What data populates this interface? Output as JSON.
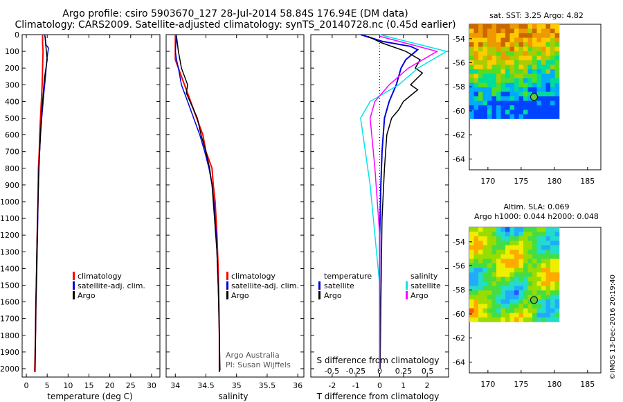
{
  "title_line1": "Argo profile: csiro 5903670_127 28-Jul-2014 58.84S 176.94E (DM data)",
  "title_line2": "Climatology: CARS2009. Satellite-adjusted climatology: synTS_20140728.nc (0.45d earlier)",
  "colors": {
    "climatology": "#ff0000",
    "satellite": "#0000dd",
    "argo": "#000000",
    "s_satellite": "#00e5ee",
    "s_argo": "#ff00ff"
  },
  "chart_data": [
    {
      "type": "line",
      "xlabel": "temperature (deg C)",
      "ylim": [
        2050,
        0
      ],
      "yticks": [
        0,
        100,
        200,
        300,
        400,
        500,
        600,
        700,
        800,
        900,
        1000,
        1100,
        1200,
        1300,
        1400,
        1500,
        1600,
        1700,
        1800,
        1900,
        2000
      ],
      "xlim": [
        -1,
        32
      ],
      "xticks": [
        0,
        5,
        10,
        15,
        20,
        25,
        30
      ],
      "legend": [
        "climatology",
        "satellite-adj. clim.",
        "Argo"
      ],
      "series": [
        {
          "name": "climatology",
          "x": [
            3.9,
            3.9,
            4.0,
            3.9,
            3.8,
            3.6,
            3.4,
            3.2,
            3.1,
            2.9,
            2.8,
            2.6,
            2.5,
            2.3,
            2.2,
            2.0
          ],
          "y": [
            0,
            50,
            100,
            200,
            300,
            400,
            500,
            600,
            700,
            800,
            1000,
            1200,
            1400,
            1600,
            1800,
            2020
          ]
        },
        {
          "name": "satellite-adj. clim.",
          "x": [
            4.4,
            4.7,
            5.3,
            4.9,
            4.6,
            4.2,
            3.7,
            3.4,
            3.2,
            3.0,
            2.8,
            2.7,
            2.5,
            2.3,
            2.2,
            2.1
          ],
          "y": [
            0,
            60,
            80,
            150,
            250,
            350,
            500,
            600,
            700,
            800,
            1000,
            1200,
            1400,
            1600,
            1800,
            2020
          ]
        },
        {
          "name": "Argo",
          "x": [
            4.5,
            4.6,
            4.8,
            5.0,
            4.7,
            4.4,
            4.2,
            3.9,
            3.6,
            3.4,
            3.1,
            2.9,
            2.7,
            2.5,
            2.3,
            2.2,
            2.1
          ],
          "y": [
            10,
            50,
            100,
            150,
            200,
            250,
            300,
            400,
            500,
            600,
            750,
            900,
            1100,
            1300,
            1600,
            1800,
            2010
          ]
        }
      ]
    },
    {
      "type": "line",
      "xlabel": "salinity",
      "ylim": [
        2050,
        0
      ],
      "xlim": [
        33.85,
        36.1
      ],
      "xticks": [
        34,
        34.5,
        35,
        35.5,
        36
      ],
      "xticklabels": [
        "34",
        "34.5",
        "35",
        "35.5",
        "36"
      ],
      "legend": [
        "climatology",
        "satellite-adj. clim.",
        "Argo"
      ],
      "annotations": [
        "Argo Australia",
        "PI: Susan Wijffels"
      ],
      "series": [
        {
          "name": "climatology",
          "x": [
            34.0,
            34.0,
            34.0,
            34.05,
            34.15,
            34.25,
            34.35,
            34.45,
            34.5,
            34.6,
            34.62,
            34.65,
            34.68,
            34.7,
            34.71,
            34.72,
            34.72
          ],
          "y": [
            0,
            100,
            150,
            200,
            300,
            400,
            500,
            600,
            700,
            800,
            900,
            1000,
            1200,
            1400,
            1600,
            1800,
            2020
          ]
        },
        {
          "name": "satellite-adj. clim.",
          "x": [
            34.02,
            34.0,
            34.02,
            34.05,
            34.1,
            34.2,
            34.3,
            34.4,
            34.48,
            34.55,
            34.6,
            34.63,
            34.67,
            34.69,
            34.71,
            34.72,
            34.72
          ],
          "y": [
            0,
            100,
            150,
            200,
            300,
            400,
            500,
            600,
            700,
            800,
            900,
            1000,
            1200,
            1400,
            1600,
            1800,
            2020
          ]
        },
        {
          "name": "Argo",
          "x": [
            34.02,
            34.05,
            34.1,
            34.2,
            34.18,
            34.24,
            34.3,
            34.36,
            34.42,
            34.5,
            34.56,
            34.6,
            34.64,
            34.68,
            34.7,
            34.72,
            34.73
          ],
          "y": [
            10,
            100,
            200,
            300,
            350,
            400,
            450,
            500,
            600,
            700,
            800,
            900,
            1100,
            1300,
            1500,
            1800,
            2010
          ]
        }
      ]
    },
    {
      "type": "line",
      "xlabel": "T difference from climatology",
      "xlabel_top": "S difference from climatology",
      "ylim": [
        2050,
        0
      ],
      "xlim": [
        -2.9,
        2.9
      ],
      "xticks": [
        -2,
        -1,
        0,
        1,
        2
      ],
      "xticks_top": [
        -0.5,
        -0.25,
        0,
        0.25,
        0.5
      ],
      "xticklabels_top": [
        "-0.5",
        "-0.25",
        "0",
        "0.25",
        "0.5"
      ],
      "legend_left_title": "temperature",
      "legend_right_title": "salinity",
      "legend_left": [
        "satellite",
        "Argo"
      ],
      "legend_right": [
        "satellite",
        "Argo"
      ],
      "series": [
        {
          "name": "temperature satellite",
          "x": [
            -0.8,
            0.1,
            1.3,
            1.6,
            1.1,
            0.9,
            0.7,
            0.4,
            0.2,
            0.1,
            0.05,
            0.0,
            0.0,
            0.0
          ],
          "y": [
            0,
            40,
            70,
            90,
            150,
            200,
            300,
            400,
            500,
            700,
            900,
            1200,
            1600,
            2000
          ]
        },
        {
          "name": "temperature Argo",
          "x": [
            -0.5,
            0.1,
            1.1,
            1.7,
            1.5,
            1.8,
            1.3,
            1.6,
            1.0,
            0.8,
            0.5,
            0.3,
            0.2,
            0.1,
            0.05,
            0.02
          ],
          "y": [
            10,
            50,
            100,
            150,
            200,
            230,
            300,
            330,
            400,
            450,
            500,
            600,
            800,
            1100,
            1600,
            2000
          ]
        },
        {
          "name": "salinity satellite",
          "x": [
            0.0,
            0.7,
            0.4,
            0.2,
            -0.1,
            -0.2,
            -0.15,
            -0.1,
            -0.05,
            0.0,
            0.0,
            0.0
          ],
          "y": [
            0,
            100,
            200,
            300,
            400,
            500,
            700,
            900,
            1200,
            1500,
            1800,
            2000
          ]
        },
        {
          "name": "salinity Argo",
          "x": [
            0.0,
            0.6,
            0.3,
            0.1,
            -0.05,
            -0.1,
            -0.05,
            0.0,
            0.0,
            0.0
          ],
          "y": [
            10,
            100,
            200,
            300,
            400,
            500,
            800,
            1200,
            1600,
            2000
          ]
        }
      ]
    },
    {
      "type": "heatmap",
      "title": "sat. SST: 3.25  Argo: 4.82",
      "xticks": [
        170,
        175,
        180,
        185
      ],
      "yticks": [
        -54,
        -56,
        -58,
        -60,
        -62,
        -64
      ],
      "marker": {
        "lon": 176.94,
        "lat": -58.84
      }
    },
    {
      "type": "heatmap",
      "title_line1": "Altim. SLA: 0.069",
      "title_line2": "Argo h1000: 0.044 h2000: 0.048",
      "xticks": [
        170,
        175,
        180,
        185
      ],
      "yticks": [
        -54,
        -56,
        -58,
        -60,
        -62,
        -64
      ],
      "marker": {
        "lon": 176.94,
        "lat": -58.84
      }
    }
  ],
  "credit": "©IMOS 13-Dec-2016 20:19:40"
}
